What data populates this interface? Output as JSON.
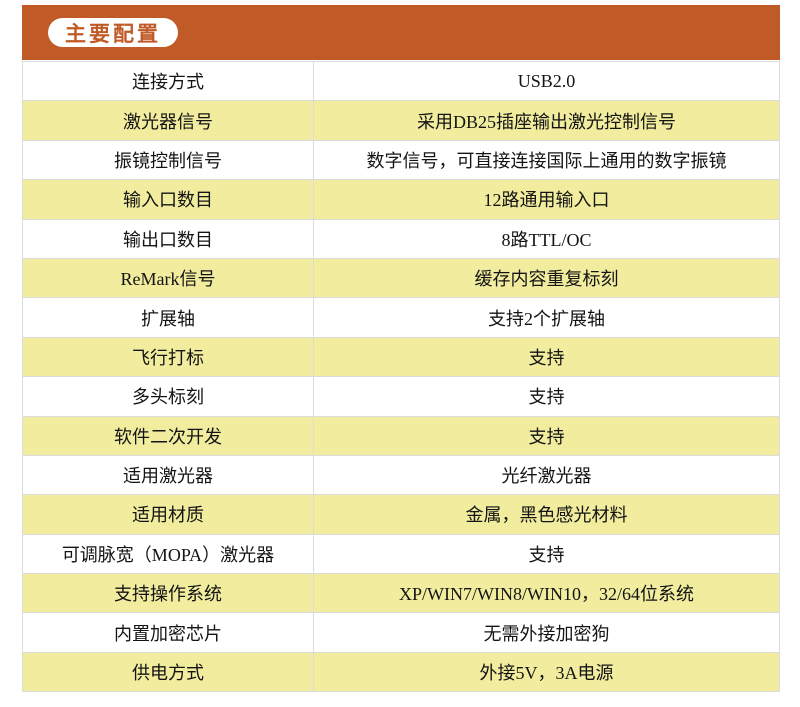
{
  "header": {
    "title": "主要配置"
  },
  "colors": {
    "orange": "#C05A26",
    "yellow": "#F1EC9E",
    "border": "#DCDCDC",
    "text": "#141414",
    "pill-bg": "#FFFFFF"
  },
  "table": {
    "rows": [
      {
        "label": "连接方式",
        "value": "USB2.0"
      },
      {
        "label": "激光器信号",
        "value": "采用DB25插座输出激光控制信号"
      },
      {
        "label": "振镜控制信号",
        "value": "数字信号，可直接连接国际上通用的数字振镜"
      },
      {
        "label": "输入口数目",
        "value": "12路通用输入口"
      },
      {
        "label": "输出口数目",
        "value": "8路TTL/OC"
      },
      {
        "label": "ReMark信号",
        "value": "缓存内容重复标刻"
      },
      {
        "label": "扩展轴",
        "value": "支持2个扩展轴"
      },
      {
        "label": "飞行打标",
        "value": "支持"
      },
      {
        "label": "多头标刻",
        "value": "支持"
      },
      {
        "label": "软件二次开发",
        "value": "支持"
      },
      {
        "label": "适用激光器",
        "value": "光纤激光器"
      },
      {
        "label": "适用材质",
        "value": "金属，黑色感光材料"
      },
      {
        "label": "可调脉宽（MOPA）激光器",
        "value": "支持"
      },
      {
        "label": "支持操作系统",
        "value": "XP/WIN7/WIN8/WIN10，32/64位系统"
      },
      {
        "label": "内置加密芯片",
        "value": "无需外接加密狗"
      },
      {
        "label": "供电方式",
        "value": "外接5V，3A电源"
      }
    ]
  }
}
